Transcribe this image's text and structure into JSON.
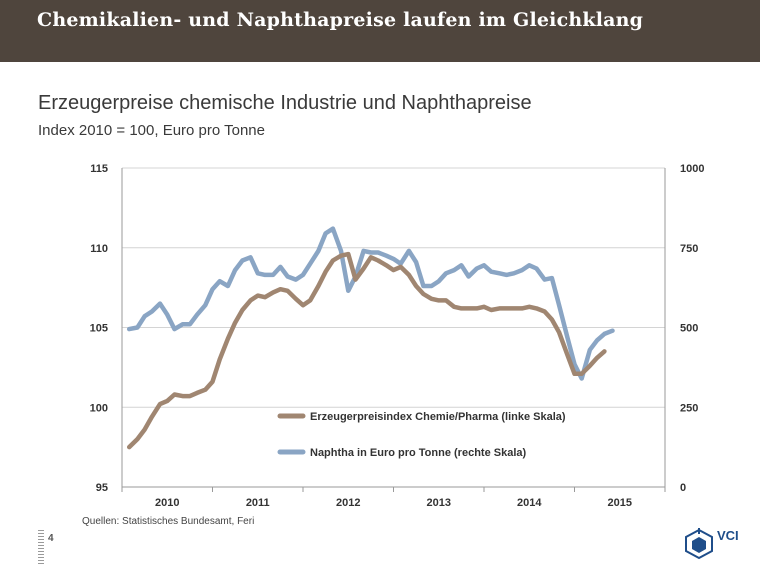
{
  "banner": {
    "title": "Chemikalien- und Naphthapreise laufen im Gleichklang"
  },
  "chart_data": {
    "type": "line",
    "title": "Erzeugerpreise chemische Industrie und Naphthapreise",
    "subtitle": "Index 2010 = 100, Euro pro Tonne",
    "x_ticks": [
      "2010",
      "2011",
      "2012",
      "2013",
      "2014",
      "2015"
    ],
    "y_left": {
      "min": 95,
      "max": 115,
      "ticks": [
        "95",
        "100",
        "105",
        "110",
        "115"
      ]
    },
    "y_right": {
      "min": 0,
      "max": 1000,
      "ticks": [
        "0",
        "250",
        "500",
        "750",
        "1000"
      ]
    },
    "x_start": 2009.5,
    "x_end": 2015.5,
    "legend_position": "center-right",
    "grid": "horizontal",
    "series": [
      {
        "name": "Erzeugerpreisindex Chemie/Pharma (linke Skala)",
        "axis": "left",
        "color": "#a08671",
        "values": [
          [
            2009.58,
            97.5
          ],
          [
            2009.67,
            98.0
          ],
          [
            2009.75,
            98.6
          ],
          [
            2009.83,
            99.4
          ],
          [
            2009.92,
            100.2
          ],
          [
            2010.0,
            100.4
          ],
          [
            2010.08,
            100.8
          ],
          [
            2010.17,
            100.7
          ],
          [
            2010.25,
            100.7
          ],
          [
            2010.33,
            100.9
          ],
          [
            2010.42,
            101.1
          ],
          [
            2010.5,
            101.6
          ],
          [
            2010.58,
            103.0
          ],
          [
            2010.67,
            104.3
          ],
          [
            2010.75,
            105.3
          ],
          [
            2010.83,
            106.1
          ],
          [
            2010.92,
            106.7
          ],
          [
            2011.0,
            107.0
          ],
          [
            2011.08,
            106.9
          ],
          [
            2011.17,
            107.2
          ],
          [
            2011.25,
            107.4
          ],
          [
            2011.33,
            107.3
          ],
          [
            2011.42,
            106.8
          ],
          [
            2011.5,
            106.4
          ],
          [
            2011.58,
            106.7
          ],
          [
            2011.67,
            107.6
          ],
          [
            2011.75,
            108.5
          ],
          [
            2011.83,
            109.2
          ],
          [
            2011.92,
            109.5
          ],
          [
            2012.0,
            109.6
          ],
          [
            2012.08,
            108.0
          ],
          [
            2012.17,
            108.7
          ],
          [
            2012.25,
            109.4
          ],
          [
            2012.33,
            109.2
          ],
          [
            2012.42,
            108.9
          ],
          [
            2012.5,
            108.6
          ],
          [
            2012.58,
            108.8
          ],
          [
            2012.67,
            108.3
          ],
          [
            2012.75,
            107.6
          ],
          [
            2012.83,
            107.1
          ],
          [
            2012.92,
            106.8
          ],
          [
            2013.0,
            106.7
          ],
          [
            2013.08,
            106.7
          ],
          [
            2013.17,
            106.3
          ],
          [
            2013.25,
            106.2
          ],
          [
            2013.33,
            106.2
          ],
          [
            2013.42,
            106.2
          ],
          [
            2013.5,
            106.3
          ],
          [
            2013.58,
            106.1
          ],
          [
            2013.67,
            106.2
          ],
          [
            2013.75,
            106.2
          ],
          [
            2013.83,
            106.2
          ],
          [
            2013.92,
            106.2
          ],
          [
            2014.0,
            106.3
          ],
          [
            2014.08,
            106.2
          ],
          [
            2014.17,
            106.0
          ],
          [
            2014.25,
            105.5
          ],
          [
            2014.33,
            104.7
          ],
          [
            2014.42,
            103.3
          ],
          [
            2014.5,
            102.1
          ],
          [
            2014.58,
            102.1
          ],
          [
            2014.67,
            102.6
          ],
          [
            2014.75,
            103.1
          ],
          [
            2014.83,
            103.5
          ]
        ]
      },
      {
        "name": "Naphtha in Euro pro Tonne (rechte Skala)",
        "axis": "right",
        "color": "#8aa5c4",
        "values": [
          [
            2009.58,
            495
          ],
          [
            2009.67,
            500
          ],
          [
            2009.75,
            535
          ],
          [
            2009.83,
            550
          ],
          [
            2009.92,
            575
          ],
          [
            2010.0,
            540
          ],
          [
            2010.08,
            495
          ],
          [
            2010.17,
            510
          ],
          [
            2010.25,
            510
          ],
          [
            2010.33,
            540
          ],
          [
            2010.42,
            570
          ],
          [
            2010.5,
            620
          ],
          [
            2010.58,
            645
          ],
          [
            2010.67,
            630
          ],
          [
            2010.75,
            680
          ],
          [
            2010.83,
            710
          ],
          [
            2010.92,
            720
          ],
          [
            2011.0,
            670
          ],
          [
            2011.08,
            665
          ],
          [
            2011.17,
            665
          ],
          [
            2011.25,
            690
          ],
          [
            2011.33,
            660
          ],
          [
            2011.42,
            650
          ],
          [
            2011.5,
            665
          ],
          [
            2011.58,
            700
          ],
          [
            2011.67,
            740
          ],
          [
            2011.75,
            795
          ],
          [
            2011.83,
            810
          ],
          [
            2011.92,
            740
          ],
          [
            2012.0,
            615
          ],
          [
            2012.08,
            660
          ],
          [
            2012.17,
            740
          ],
          [
            2012.25,
            735
          ],
          [
            2012.33,
            735
          ],
          [
            2012.42,
            725
          ],
          [
            2012.5,
            715
          ],
          [
            2012.58,
            700
          ],
          [
            2012.67,
            740
          ],
          [
            2012.75,
            705
          ],
          [
            2012.83,
            630
          ],
          [
            2012.92,
            630
          ],
          [
            2013.0,
            645
          ],
          [
            2013.08,
            670
          ],
          [
            2013.17,
            680
          ],
          [
            2013.25,
            695
          ],
          [
            2013.33,
            660
          ],
          [
            2013.42,
            685
          ],
          [
            2013.5,
            695
          ],
          [
            2013.58,
            675
          ],
          [
            2013.67,
            670
          ],
          [
            2013.75,
            665
          ],
          [
            2013.83,
            670
          ],
          [
            2013.92,
            680
          ],
          [
            2014.0,
            695
          ],
          [
            2014.08,
            685
          ],
          [
            2014.17,
            650
          ],
          [
            2014.25,
            655
          ],
          [
            2014.33,
            570
          ],
          [
            2014.42,
            470
          ],
          [
            2014.5,
            385
          ],
          [
            2014.58,
            340
          ],
          [
            2014.67,
            430
          ],
          [
            2014.75,
            460
          ],
          [
            2014.83,
            480
          ],
          [
            2014.92,
            490
          ]
        ]
      }
    ]
  },
  "footer": {
    "source": "Quellen: Statistisches Bundesamt, Feri",
    "page_number": "4",
    "logo_text": "VCI"
  }
}
